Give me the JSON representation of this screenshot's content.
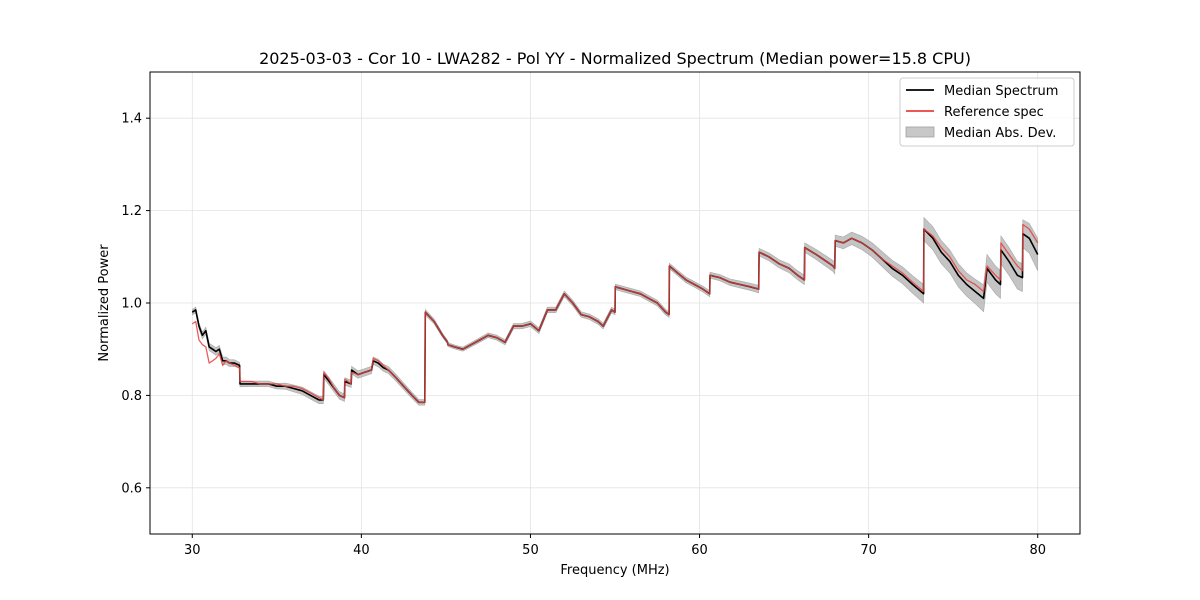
{
  "chart_data": {
    "type": "line",
    "title": "2025-03-03 - Cor 10 - LWA282 - Pol YY - Normalized Spectrum (Median power=15.8 CPU)",
    "xlabel": "Frequency (MHz)",
    "ylabel": "Normalized Power",
    "xlim": [
      27.5,
      82.5
    ],
    "ylim": [
      0.5,
      1.5
    ],
    "xticks": [
      30,
      40,
      50,
      60,
      70,
      80
    ],
    "yticks": [
      0.6,
      0.8,
      1.0,
      1.2,
      1.4
    ],
    "xtick_labels": [
      "30",
      "40",
      "50",
      "60",
      "70",
      "80"
    ],
    "ytick_labels": [
      "0.6",
      "0.8",
      "1.0",
      "1.2",
      "1.4"
    ],
    "grid": true,
    "legend_position": "top-right",
    "colors": {
      "median": "#000000",
      "reference": "#e8413c",
      "mad": "#b0b0b0"
    },
    "series": [
      {
        "name": "Median Spectrum",
        "x": [
          30.0,
          30.2,
          30.4,
          30.6,
          30.8,
          31.0,
          31.2,
          31.4,
          31.6,
          31.8,
          32.0,
          32.2,
          32.5,
          32.8,
          32.82,
          33.5,
          34.0,
          34.5,
          35.0,
          35.5,
          36.0,
          36.5,
          37.0,
          37.5,
          37.75,
          37.78,
          38.1,
          38.4,
          38.7,
          39.0,
          39.02,
          39.4,
          39.42,
          39.8,
          40.2,
          40.6,
          40.7,
          41.0,
          41.3,
          41.6,
          42.0,
          42.5,
          43.0,
          43.4,
          43.75,
          43.78,
          44.3,
          44.8,
          45.1,
          45.12,
          45.5,
          46.0,
          46.5,
          47.0,
          47.5,
          48.0,
          48.5,
          49.0,
          49.5,
          50.0,
          50.5,
          51.0,
          51.5,
          52.0,
          52.5,
          53.0,
          53.5,
          54.0,
          54.3,
          54.8,
          55.0,
          55.02,
          55.5,
          56.0,
          56.5,
          57.0,
          57.5,
          58.0,
          58.2,
          58.22,
          58.7,
          59.2,
          59.7,
          60.2,
          60.6,
          60.62,
          61.2,
          61.8,
          62.4,
          63.0,
          63.5,
          63.52,
          64.1,
          64.7,
          65.3,
          65.8,
          66.2,
          66.22,
          66.9,
          67.5,
          67.9,
          68.0,
          68.02,
          68.5,
          69.0,
          69.6,
          70.2,
          70.8,
          71.4,
          72.0,
          72.6,
          73.25,
          73.27,
          73.8,
          74.3,
          74.8,
          75.3,
          75.8,
          76.3,
          76.8,
          77.0,
          77.5,
          77.8,
          77.82,
          78.3,
          78.8,
          79.1,
          79.12,
          79.5,
          80.0
        ],
        "values": [
          0.98,
          0.985,
          0.95,
          0.93,
          0.94,
          0.905,
          0.9,
          0.895,
          0.9,
          0.875,
          0.875,
          0.87,
          0.87,
          0.865,
          0.825,
          0.825,
          0.825,
          0.825,
          0.82,
          0.82,
          0.815,
          0.81,
          0.8,
          0.79,
          0.79,
          0.845,
          0.83,
          0.815,
          0.8,
          0.795,
          0.83,
          0.825,
          0.855,
          0.845,
          0.85,
          0.855,
          0.875,
          0.87,
          0.86,
          0.855,
          0.84,
          0.82,
          0.8,
          0.785,
          0.785,
          0.98,
          0.96,
          0.93,
          0.915,
          0.91,
          0.905,
          0.9,
          0.91,
          0.92,
          0.93,
          0.925,
          0.915,
          0.95,
          0.95,
          0.955,
          0.94,
          0.985,
          0.985,
          1.02,
          1.0,
          0.975,
          0.97,
          0.96,
          0.95,
          0.985,
          0.98,
          1.035,
          1.03,
          1.025,
          1.02,
          1.01,
          1.0,
          0.98,
          0.975,
          1.08,
          1.065,
          1.05,
          1.04,
          1.03,
          1.02,
          1.06,
          1.055,
          1.045,
          1.04,
          1.035,
          1.03,
          1.11,
          1.1,
          1.085,
          1.075,
          1.06,
          1.05,
          1.12,
          1.105,
          1.09,
          1.08,
          1.075,
          1.135,
          1.13,
          1.14,
          1.13,
          1.115,
          1.095,
          1.075,
          1.06,
          1.04,
          1.02,
          1.16,
          1.14,
          1.11,
          1.09,
          1.06,
          1.04,
          1.025,
          1.01,
          1.075,
          1.05,
          1.04,
          1.115,
          1.09,
          1.06,
          1.055,
          1.15,
          1.14,
          1.105
        ]
      },
      {
        "name": "Reference spec",
        "x": [
          30.0,
          30.2,
          30.4,
          30.6,
          30.8,
          31.0,
          31.2,
          31.4,
          31.6,
          31.8,
          32.0,
          32.2,
          32.5,
          32.8,
          32.82,
          33.5,
          34.0,
          34.5,
          35.0,
          35.5,
          36.0,
          36.5,
          37.0,
          37.5,
          37.75,
          37.78,
          38.1,
          38.4,
          38.7,
          39.0,
          39.02,
          39.4,
          39.42,
          39.8,
          40.2,
          40.6,
          40.7,
          41.0,
          41.3,
          41.6,
          42.0,
          42.5,
          43.0,
          43.4,
          43.75,
          43.78,
          44.3,
          44.8,
          45.1,
          45.12,
          45.5,
          46.0,
          46.5,
          47.0,
          47.5,
          48.0,
          48.5,
          49.0,
          49.5,
          50.0,
          50.5,
          51.0,
          51.5,
          52.0,
          52.5,
          53.0,
          53.5,
          54.0,
          54.3,
          54.8,
          55.0,
          55.02,
          55.5,
          56.0,
          56.5,
          57.0,
          57.5,
          58.0,
          58.2,
          58.22,
          58.7,
          59.2,
          59.7,
          60.2,
          60.6,
          60.62,
          61.2,
          61.8,
          62.4,
          63.0,
          63.5,
          63.52,
          64.1,
          64.7,
          65.3,
          65.8,
          66.2,
          66.22,
          66.9,
          67.5,
          67.9,
          68.0,
          68.02,
          68.5,
          69.0,
          69.6,
          70.2,
          70.8,
          71.4,
          72.0,
          72.6,
          73.25,
          73.27,
          73.8,
          74.3,
          74.8,
          75.3,
          75.8,
          76.3,
          76.8,
          77.0,
          77.5,
          77.8,
          77.82,
          78.3,
          78.8,
          79.1,
          79.12,
          79.5,
          80.0
        ],
        "values": [
          0.955,
          0.96,
          0.92,
          0.91,
          0.905,
          0.87,
          0.875,
          0.88,
          0.89,
          0.865,
          0.875,
          0.87,
          0.865,
          0.86,
          0.83,
          0.83,
          0.825,
          0.825,
          0.825,
          0.82,
          0.82,
          0.815,
          0.805,
          0.795,
          0.79,
          0.85,
          0.835,
          0.815,
          0.8,
          0.795,
          0.835,
          0.825,
          0.85,
          0.845,
          0.85,
          0.855,
          0.88,
          0.875,
          0.865,
          0.855,
          0.84,
          0.82,
          0.8,
          0.785,
          0.785,
          0.98,
          0.96,
          0.93,
          0.915,
          0.91,
          0.905,
          0.9,
          0.91,
          0.92,
          0.93,
          0.925,
          0.915,
          0.95,
          0.95,
          0.955,
          0.94,
          0.985,
          0.985,
          1.02,
          1.0,
          0.975,
          0.97,
          0.96,
          0.95,
          0.985,
          0.98,
          1.035,
          1.03,
          1.025,
          1.02,
          1.01,
          1.0,
          0.98,
          0.975,
          1.08,
          1.065,
          1.05,
          1.04,
          1.03,
          1.02,
          1.06,
          1.055,
          1.045,
          1.04,
          1.035,
          1.03,
          1.11,
          1.1,
          1.085,
          1.075,
          1.06,
          1.05,
          1.12,
          1.105,
          1.09,
          1.08,
          1.075,
          1.135,
          1.13,
          1.14,
          1.13,
          1.115,
          1.095,
          1.08,
          1.065,
          1.045,
          1.025,
          1.16,
          1.145,
          1.12,
          1.1,
          1.07,
          1.05,
          1.04,
          1.025,
          1.08,
          1.06,
          1.05,
          1.13,
          1.105,
          1.08,
          1.07,
          1.17,
          1.16,
          1.13
        ]
      },
      {
        "name": "Median Abs. Dev.",
        "x": [
          30.0,
          31.0,
          32.0,
          33.0,
          35.0,
          36.5,
          37.75,
          39.0,
          41.0,
          43.75,
          45.0,
          50.0,
          55.0,
          60.0,
          63.5,
          66.2,
          68.0,
          70.0,
          73.25,
          73.27,
          76.0,
          77.0,
          78.0,
          79.1,
          79.12,
          80.0
        ],
        "deviation": [
          0.006,
          0.008,
          0.008,
          0.006,
          0.006,
          0.008,
          0.008,
          0.008,
          0.008,
          0.006,
          0.004,
          0.006,
          0.006,
          0.006,
          0.008,
          0.01,
          0.012,
          0.015,
          0.02,
          0.025,
          0.025,
          0.03,
          0.03,
          0.03,
          0.03,
          0.035
        ]
      }
    ]
  }
}
